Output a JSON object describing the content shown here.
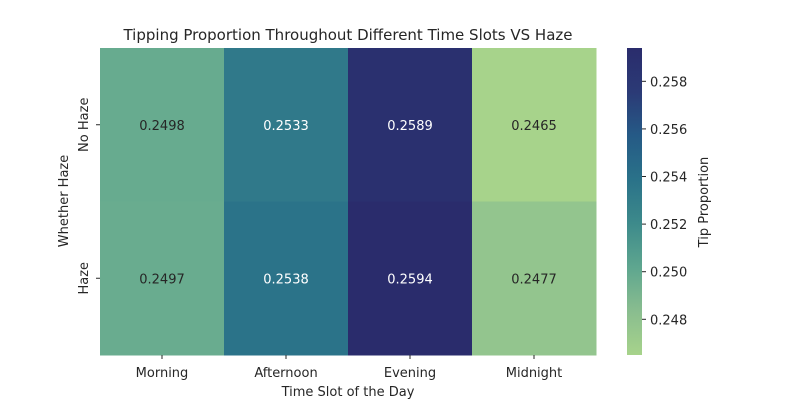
{
  "chart_data": {
    "type": "heatmap",
    "title": "Tipping Proportion Throughout Different Time Slots VS Haze",
    "xlabel": "Time Slot of the Day",
    "ylabel": "Whether Haze",
    "x_categories": [
      "Morning",
      "Afternoon",
      "Evening",
      "Midnight"
    ],
    "y_categories": [
      "No Haze",
      "Haze"
    ],
    "values": [
      [
        0.2498,
        0.2533,
        0.2589,
        0.2465
      ],
      [
        0.2497,
        0.2538,
        0.2594,
        0.2477
      ]
    ],
    "value_labels": [
      [
        "0.2498",
        "0.2533",
        "0.2589",
        "0.2465"
      ],
      [
        "0.2497",
        "0.2538",
        "0.2594",
        "0.2477"
      ]
    ],
    "colorbar": {
      "label": "Tip Proportion",
      "range": [
        0.2465,
        0.2594
      ],
      "ticks": [
        0.248,
        0.25,
        0.252,
        0.254,
        0.256,
        0.258
      ],
      "tick_labels": [
        "0.248",
        "0.250",
        "0.252",
        "0.254",
        "0.256",
        "0.258"
      ]
    },
    "colormap": [
      "#a7d38b",
      "#89bd8f",
      "#5ea68f",
      "#3d8a8b",
      "#2a7289",
      "#255a86",
      "#2b3a76",
      "#2a2c6c"
    ]
  }
}
